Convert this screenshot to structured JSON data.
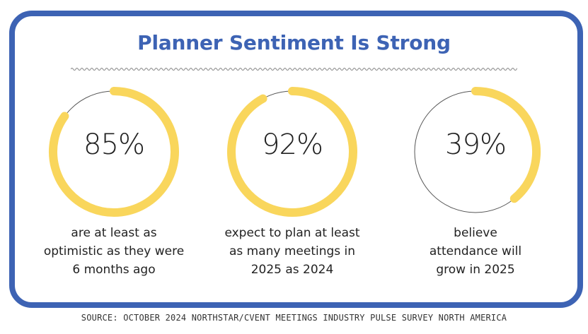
{
  "title": "Planner Sentiment Is Strong",
  "source": "SOURCE: OCTOBER 2024 NORTHSTAR/CVENT MEETINGS INDUSTRY PULSE SURVEY NORTH AMERICA",
  "colors": {
    "frame": "#3d63b4",
    "accent": "#f9d65c",
    "track": "#555555",
    "text": "#222222"
  },
  "chart_data": {
    "type": "pie",
    "title": "Planner Sentiment Is Strong",
    "unit": "%",
    "stats": [
      {
        "value": 85,
        "display": "85%",
        "label_lines": [
          "are at least as",
          "optimistic as they were",
          "6 months ago"
        ]
      },
      {
        "value": 92,
        "display": "92%",
        "label_lines": [
          "expect to plan at least",
          "as many meetings in",
          "2025 as 2024"
        ]
      },
      {
        "value": 39,
        "display": "39%",
        "label_lines": [
          "believe",
          "attendance will",
          "grow in 2025"
        ]
      }
    ]
  }
}
